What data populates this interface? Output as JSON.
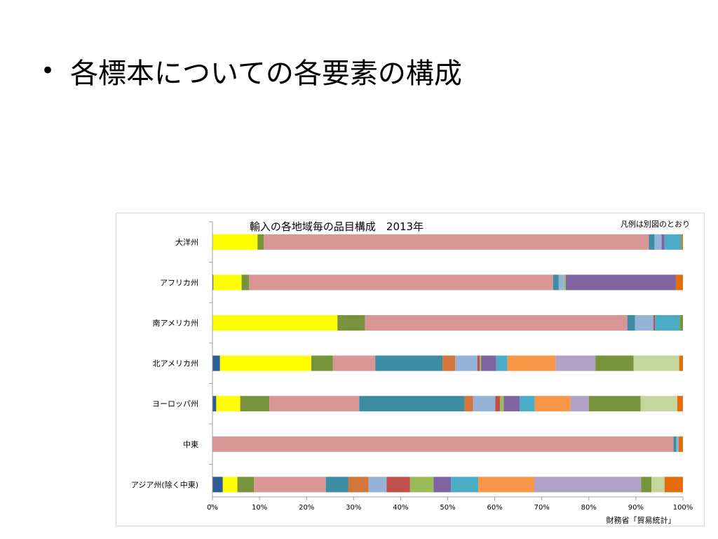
{
  "slide": {
    "bullet": "•",
    "title": "各標本についての各要素の構成"
  },
  "chart_data": {
    "type": "bar",
    "orientation": "horizontal",
    "stacked": "percent",
    "title": "輸入の各地域毎の品目構成　2013年",
    "legend_note": "凡例は別図のとおり",
    "source_note": "財務省「貿易統計」",
    "categories": [
      "大洋州",
      "アフリカ州",
      "南アメリカ州",
      "北アメリカ州",
      "ヨーロッパ州",
      "中東",
      "アジア州(除く中東)"
    ],
    "xlim": [
      0,
      100
    ],
    "xticks": [
      "0%",
      "10%",
      "20%",
      "30%",
      "40%",
      "50%",
      "60%",
      "70%",
      "80%",
      "90%",
      "100%"
    ],
    "grid": false,
    "segment_colors": [
      "#2E5C99",
      "#FFFF00",
      "#77933C",
      "#D99694",
      "#3C8CA3",
      "#D4763B",
      "#95B3D7",
      "#C0504D",
      "#9BBB59",
      "#8064A2",
      "#4BACC6",
      "#F79646",
      "#B2A1C7",
      "#77933C",
      "#C3D69B",
      "#E46C0A"
    ],
    "values": [
      [
        0,
        9.5,
        1.3,
        81.2,
        1.2,
        0,
        1.5,
        0,
        0,
        0.6,
        3.5,
        0,
        0,
        0.2,
        0,
        0.2
      ],
      [
        0.2,
        6.0,
        1.6,
        64.6,
        1.2,
        0,
        1.2,
        0,
        0.3,
        23.4,
        0,
        0,
        0,
        0,
        0,
        1.5
      ],
      [
        0,
        26.3,
        5.8,
        55.2,
        1.6,
        0,
        3.9,
        0.3,
        0,
        0,
        5.2,
        0,
        0,
        0.7,
        0,
        0
      ],
      [
        1.6,
        19.4,
        4.6,
        9.0,
        14.3,
        2.7,
        4.7,
        0.5,
        0.3,
        3.2,
        2.4,
        10.2,
        8.5,
        8.1,
        9.7,
        0.8
      ],
      [
        0.8,
        5.1,
        6.2,
        19.1,
        22.4,
        1.8,
        4.7,
        1.0,
        0.8,
        3.4,
        3.2,
        7.6,
        3.9,
        11.0,
        7.8,
        1.2
      ],
      [
        0,
        0,
        0,
        98.0,
        0.6,
        0,
        0.5,
        0,
        0,
        0,
        0,
        0,
        0,
        0,
        0,
        0.9
      ],
      [
        2.2,
        3.1,
        3.5,
        15.3,
        4.8,
        4.3,
        3.8,
        5.0,
        5.0,
        3.7,
        5.8,
        11.9,
        22.7,
        2.2,
        2.8,
        3.9
      ]
    ]
  }
}
